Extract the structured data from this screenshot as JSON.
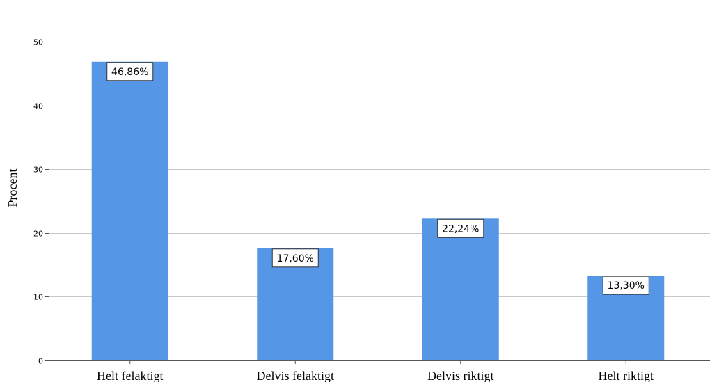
{
  "chart_data": {
    "type": "bar",
    "categories": [
      "Helt felaktigt",
      "Delvis felaktigt",
      "Delvis riktigt",
      "Helt riktigt"
    ],
    "values": [
      46.86,
      17.6,
      22.24,
      13.3
    ],
    "data_labels": [
      "46,86%",
      "17,60%",
      "22,24%",
      "13,30%"
    ],
    "title": "",
    "xlabel": "",
    "ylabel": "Procent",
    "ylim": [
      0,
      55
    ],
    "yticks": [
      0,
      10,
      20,
      30,
      40,
      50
    ],
    "grid": true,
    "bar_color": "#5596e6"
  }
}
